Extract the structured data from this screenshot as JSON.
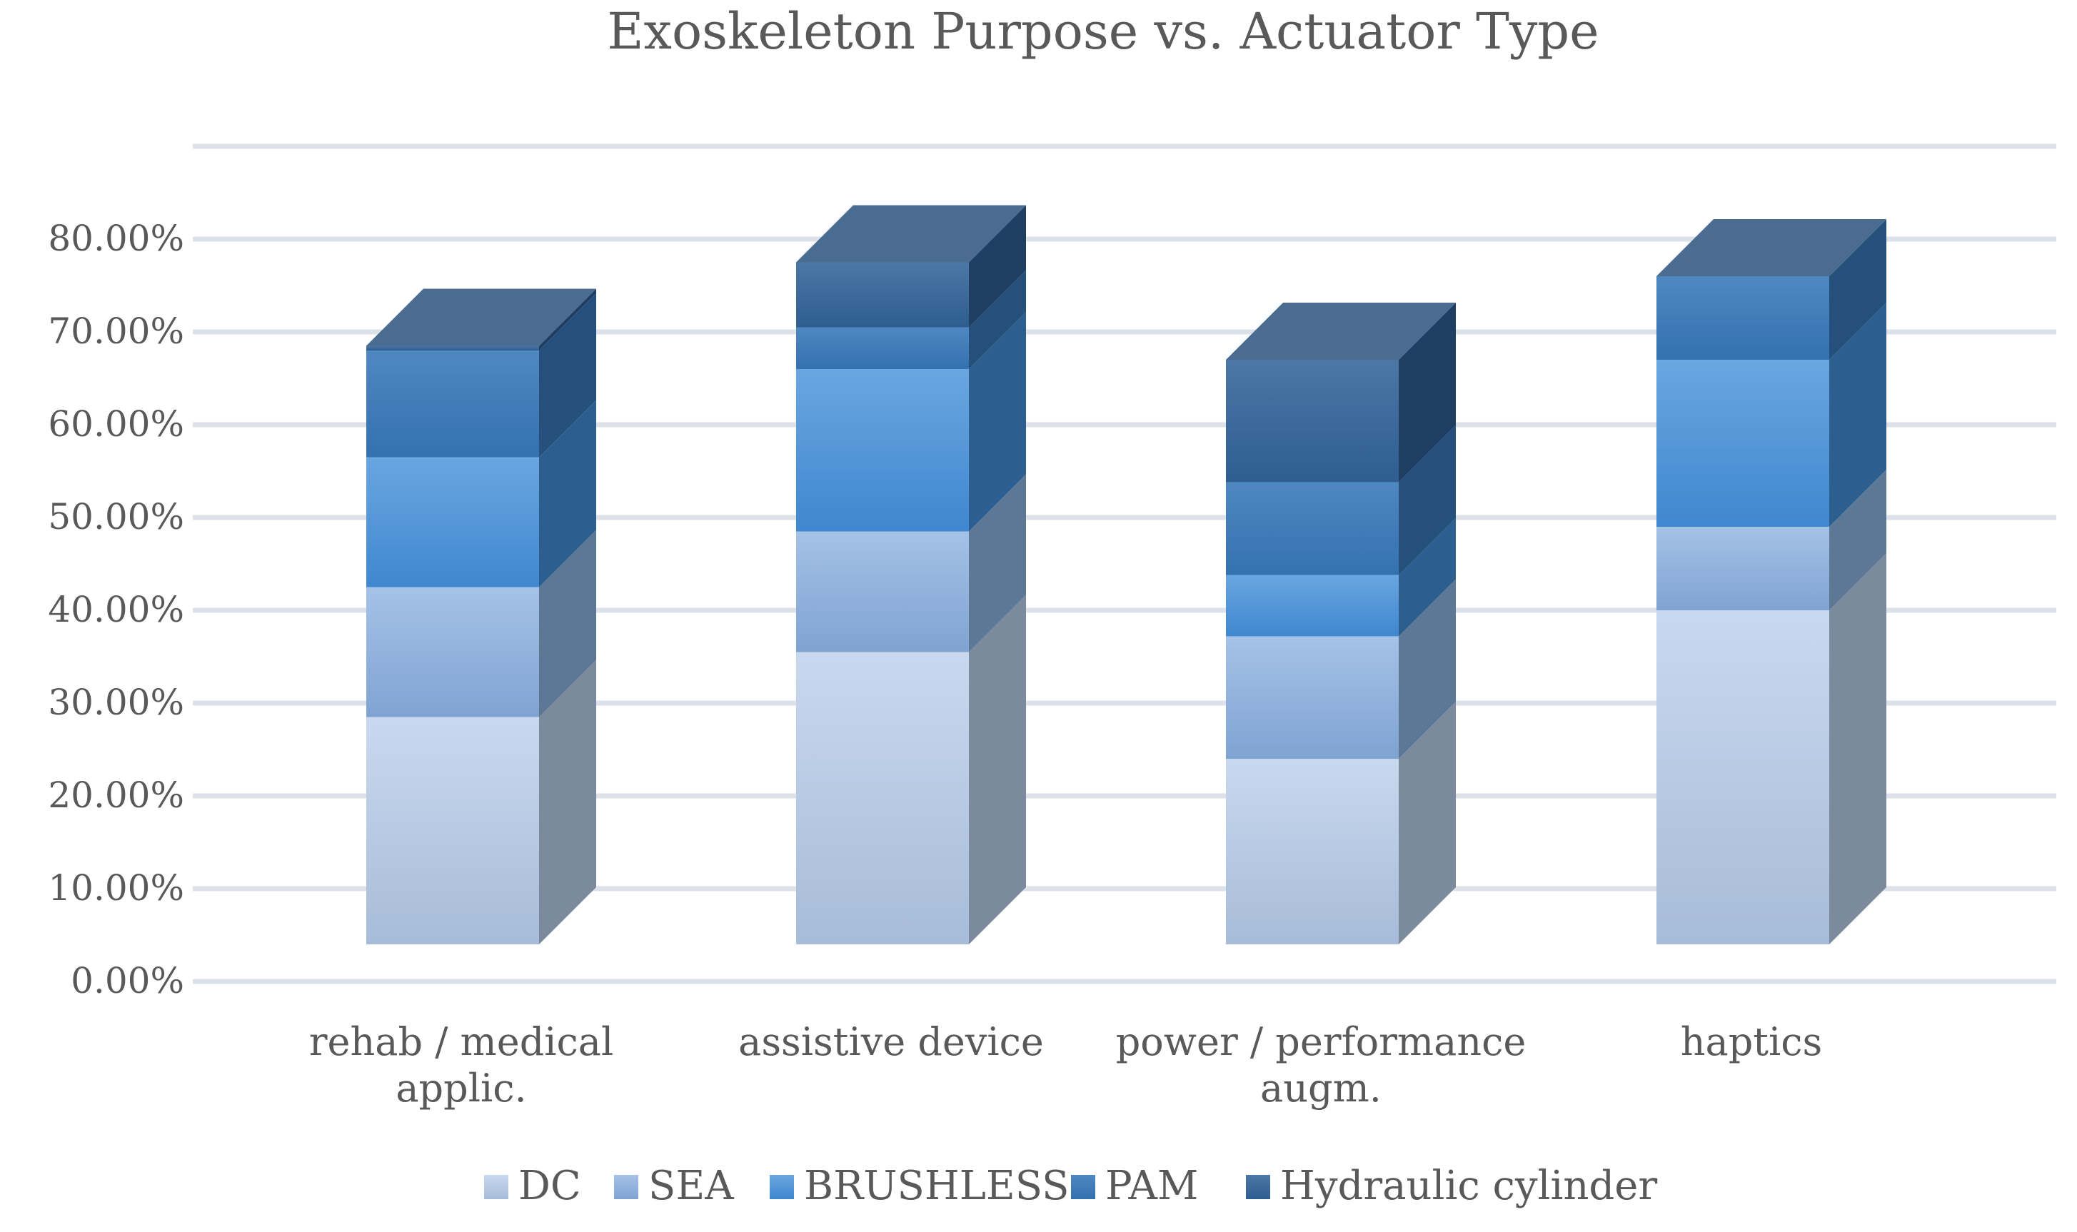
{
  "chart_data": {
    "type": "bar",
    "stacked": true,
    "three_d": true,
    "title": "Exoskeleton Purpose vs. Actuator Type",
    "xlabel": "",
    "ylabel": "",
    "ylim": [
      0,
      90
    ],
    "y_tick_step": 10,
    "y_tick_labels": [
      "0.00%",
      "10.00%",
      "20.00%",
      "30.00%",
      "40.00%",
      "50.00%",
      "60.00%",
      "70.00%",
      "80.00%"
    ],
    "grid": true,
    "legend_position": "bottom",
    "categories": [
      [
        "rehab / medical",
        "applic."
      ],
      [
        "assistive device"
      ],
      [
        "power / performance",
        "augm."
      ],
      [
        "haptics"
      ]
    ],
    "series": [
      {
        "name": "DC",
        "values": [
          24.5,
          31.5,
          20.0,
          36.0
        ],
        "colors": {
          "top": "#c9d8ee",
          "bottom": "#a7bcd9",
          "side": "#7b8a9c",
          "cap": "#c9d8ee"
        }
      },
      {
        "name": "SEA",
        "values": [
          14.0,
          13.0,
          13.2,
          9.0
        ],
        "colors": {
          "top": "#a5c2e7",
          "bottom": "#7fa3d2",
          "side": "#5d7895",
          "cap": "#a5c2e7"
        }
      },
      {
        "name": "BRUSHLESS",
        "values": [
          14.0,
          17.5,
          6.6,
          18.0
        ],
        "colors": {
          "top": "#6aa6e0",
          "bottom": "#3f87cf",
          "side": "#2c5f8f",
          "cap": "#6aa6e0"
        }
      },
      {
        "name": "PAM",
        "values": [
          11.5,
          4.5,
          10.0,
          9.0
        ],
        "colors": {
          "top": "#4f88c1",
          "bottom": "#3471af",
          "side": "#25507c",
          "cap": "#4f88c1"
        }
      },
      {
        "name": "Hydraulic cylinder",
        "values": [
          0.5,
          7.0,
          13.2,
          0.0
        ],
        "colors": {
          "top": "#4c77a6",
          "bottom": "#2f5d90",
          "side": "#1f3f62",
          "cap": "#4a6c91"
        }
      }
    ]
  }
}
